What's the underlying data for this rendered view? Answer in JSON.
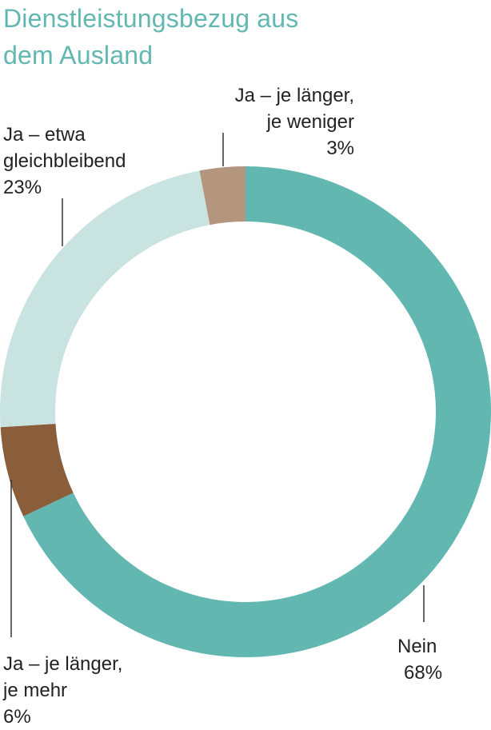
{
  "title_lines": [
    "Dienstleistungsbezug aus",
    "dem Ausland"
  ],
  "colors": {
    "title": "#62b8b1",
    "nein": "#62b8b1",
    "gleich": "#c9e3e1",
    "mehr": "#8a5d3b",
    "weniger": "#b4957e",
    "leader": "#333333"
  },
  "labels": {
    "weniger": [
      "Ja – je länger,",
      "je weniger",
      "3%"
    ],
    "gleich": [
      "Ja – etwa",
      "gleichbleibend",
      "23%"
    ],
    "mehr": [
      "Ja – je länger,",
      "je mehr",
      "6%"
    ],
    "nein": [
      "Nein",
      "68%"
    ]
  },
  "chart_data": {
    "type": "pie",
    "variant": "donut",
    "title": "Dienstleistungsbezug aus dem Ausland",
    "slices": [
      {
        "name": "Nein",
        "value": 68,
        "color": "#62b8b1"
      },
      {
        "name": "Ja – je länger, je mehr",
        "value": 6,
        "color": "#8a5d3b"
      },
      {
        "name": "Ja – etwa gleichbleibend",
        "value": 23,
        "color": "#c9e3e1"
      },
      {
        "name": "Ja – je länger, je weniger",
        "value": 3,
        "color": "#b4957e"
      }
    ],
    "start": "12 o'clock",
    "direction": "clockwise"
  }
}
